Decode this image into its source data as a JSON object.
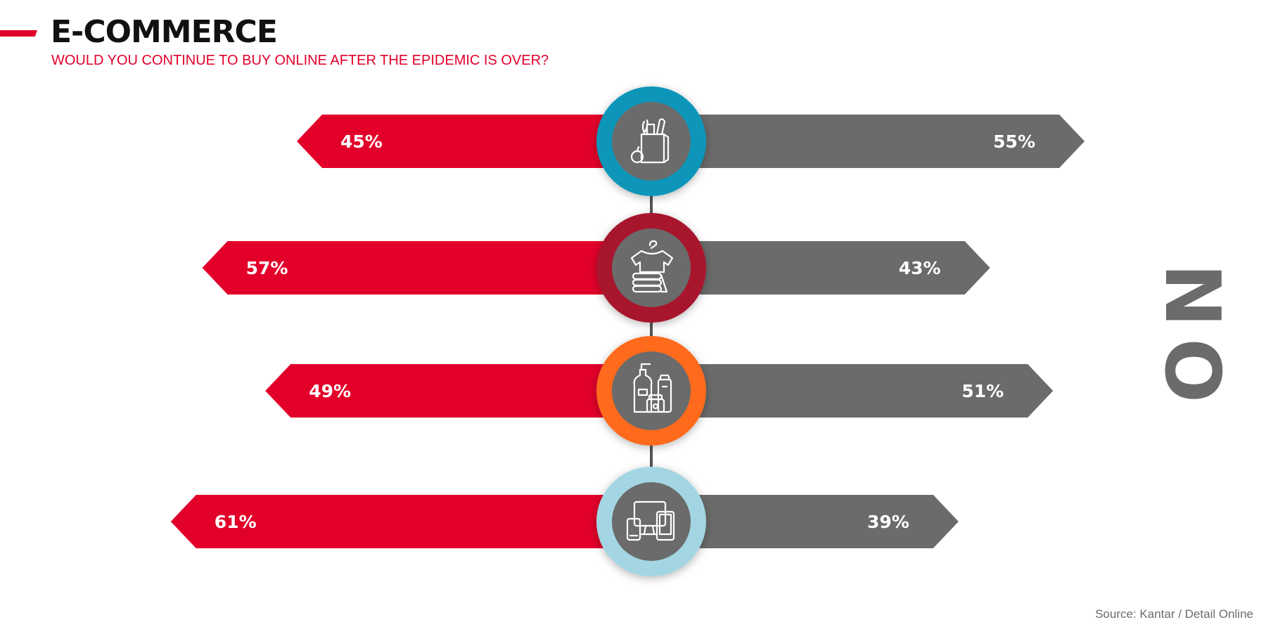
{
  "header": {
    "title": "E-COMMERCE",
    "subtitle": "WOULD YOU CONTINUE TO BUY ONLINE AFTER THE EPIDEMIC IS OVER?"
  },
  "side_label": "NO",
  "source": "Source: Kantar / Detail Online",
  "colors": {
    "accent": "#e2002a",
    "no_bar": "#6a6b6a",
    "connector": "#555555",
    "icon_fill": "#6a6b6a"
  },
  "chart_data": {
    "type": "bar",
    "orientation": "diverging-horizontal",
    "title": "E-COMMERCE",
    "subtitle": "WOULD YOU CONTINUE TO BUY ONLINE AFTER THE EPIDEMIC IS OVER?",
    "categories": [
      {
        "icon": "grocery-bag-icon",
        "ring_color": "#0e96b9"
      },
      {
        "icon": "clothing-icon",
        "ring_color": "#a8182e"
      },
      {
        "icon": "cosmetics-icon",
        "ring_color": "#ff6a1f"
      },
      {
        "icon": "electronics-icon",
        "ring_color": "#a3d6e2"
      }
    ],
    "series": [
      {
        "side": "left",
        "color": "#e2002a",
        "values": [
          45,
          57,
          49,
          61
        ]
      },
      {
        "name": "NO",
        "side": "right",
        "color": "#6a6b6a",
        "values": [
          55,
          43,
          51,
          39
        ]
      }
    ],
    "value_labels": [
      {
        "left": "45%",
        "right": "55%"
      },
      {
        "left": "57%",
        "right": "43%"
      },
      {
        "left": "49%",
        "right": "51%"
      },
      {
        "left": "61%",
        "right": "39%"
      }
    ],
    "value_unit": "%",
    "xlim": [
      0,
      100
    ],
    "legend": "right",
    "grid": false
  }
}
